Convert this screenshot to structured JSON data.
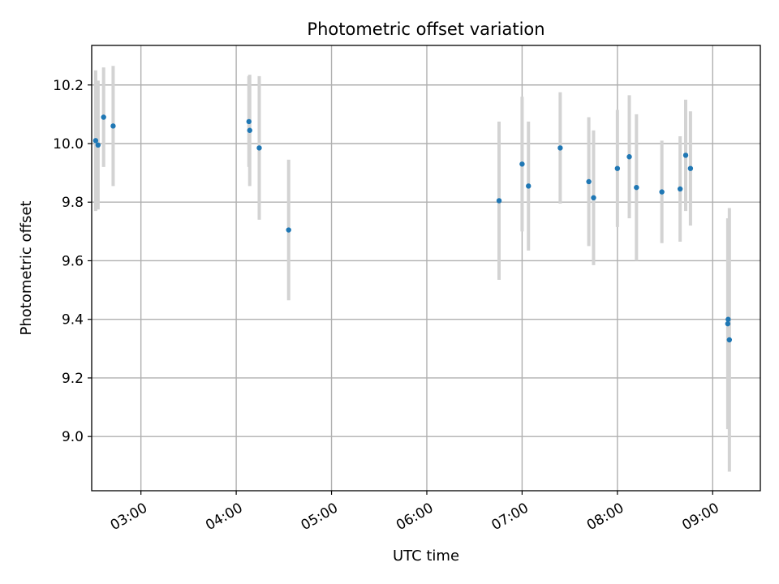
{
  "chart_data": {
    "type": "scatter",
    "title": "Photometric offset variation",
    "xlabel": "UTC time",
    "ylabel": "Photometric offset",
    "x_axis_type": "time",
    "xlim": [
      "02:29",
      "09:30"
    ],
    "ylim": [
      8.815,
      10.335
    ],
    "grid": true,
    "x_ticks": [
      "03:00",
      "04:00",
      "05:00",
      "06:00",
      "07:00",
      "08:00",
      "09:00"
    ],
    "y_ticks": [
      "9.0",
      "9.2",
      "9.4",
      "9.6",
      "9.8",
      "10.0",
      "10.2"
    ],
    "marker_color": "#1f77b4",
    "errorbar_color": "#d3d3d3",
    "series": [
      {
        "points": [
          {
            "x": "02:31:30",
            "y": 10.01,
            "err": 0.24
          },
          {
            "x": "02:33:00",
            "y": 9.995,
            "err": 0.22
          },
          {
            "x": "02:36:30",
            "y": 10.09,
            "err": 0.17
          },
          {
            "x": "02:42:30",
            "y": 10.06,
            "err": 0.205
          },
          {
            "x": "04:08:00",
            "y": 10.075,
            "err": 0.155
          },
          {
            "x": "04:08:30",
            "y": 10.045,
            "err": 0.19
          },
          {
            "x": "04:14:30",
            "y": 9.985,
            "err": 0.245
          },
          {
            "x": "04:33:00",
            "y": 9.705,
            "err": 0.24
          },
          {
            "x": "06:45:30",
            "y": 9.805,
            "err": 0.27
          },
          {
            "x": "07:00:00",
            "y": 9.93,
            "err": 0.23
          },
          {
            "x": "07:04:00",
            "y": 9.855,
            "err": 0.22
          },
          {
            "x": "07:24:00",
            "y": 9.985,
            "err": 0.19
          },
          {
            "x": "07:42:00",
            "y": 9.87,
            "err": 0.22
          },
          {
            "x": "07:45:00",
            "y": 9.815,
            "err": 0.23
          },
          {
            "x": "08:00:00",
            "y": 9.915,
            "err": 0.2
          },
          {
            "x": "08:07:30",
            "y": 9.955,
            "err": 0.21
          },
          {
            "x": "08:12:00",
            "y": 9.85,
            "err": 0.25
          },
          {
            "x": "08:28:00",
            "y": 9.835,
            "err": 0.175
          },
          {
            "x": "08:39:30",
            "y": 9.845,
            "err": 0.18
          },
          {
            "x": "08:43:00",
            "y": 9.96,
            "err": 0.19
          },
          {
            "x": "08:46:00",
            "y": 9.915,
            "err": 0.195
          },
          {
            "x": "09:09:30",
            "y": 9.385,
            "err": 0.36
          },
          {
            "x": "09:09:45",
            "y": 9.4,
            "err": 0.34
          },
          {
            "x": "09:10:30",
            "y": 9.33,
            "err": 0.45
          }
        ]
      }
    ]
  }
}
